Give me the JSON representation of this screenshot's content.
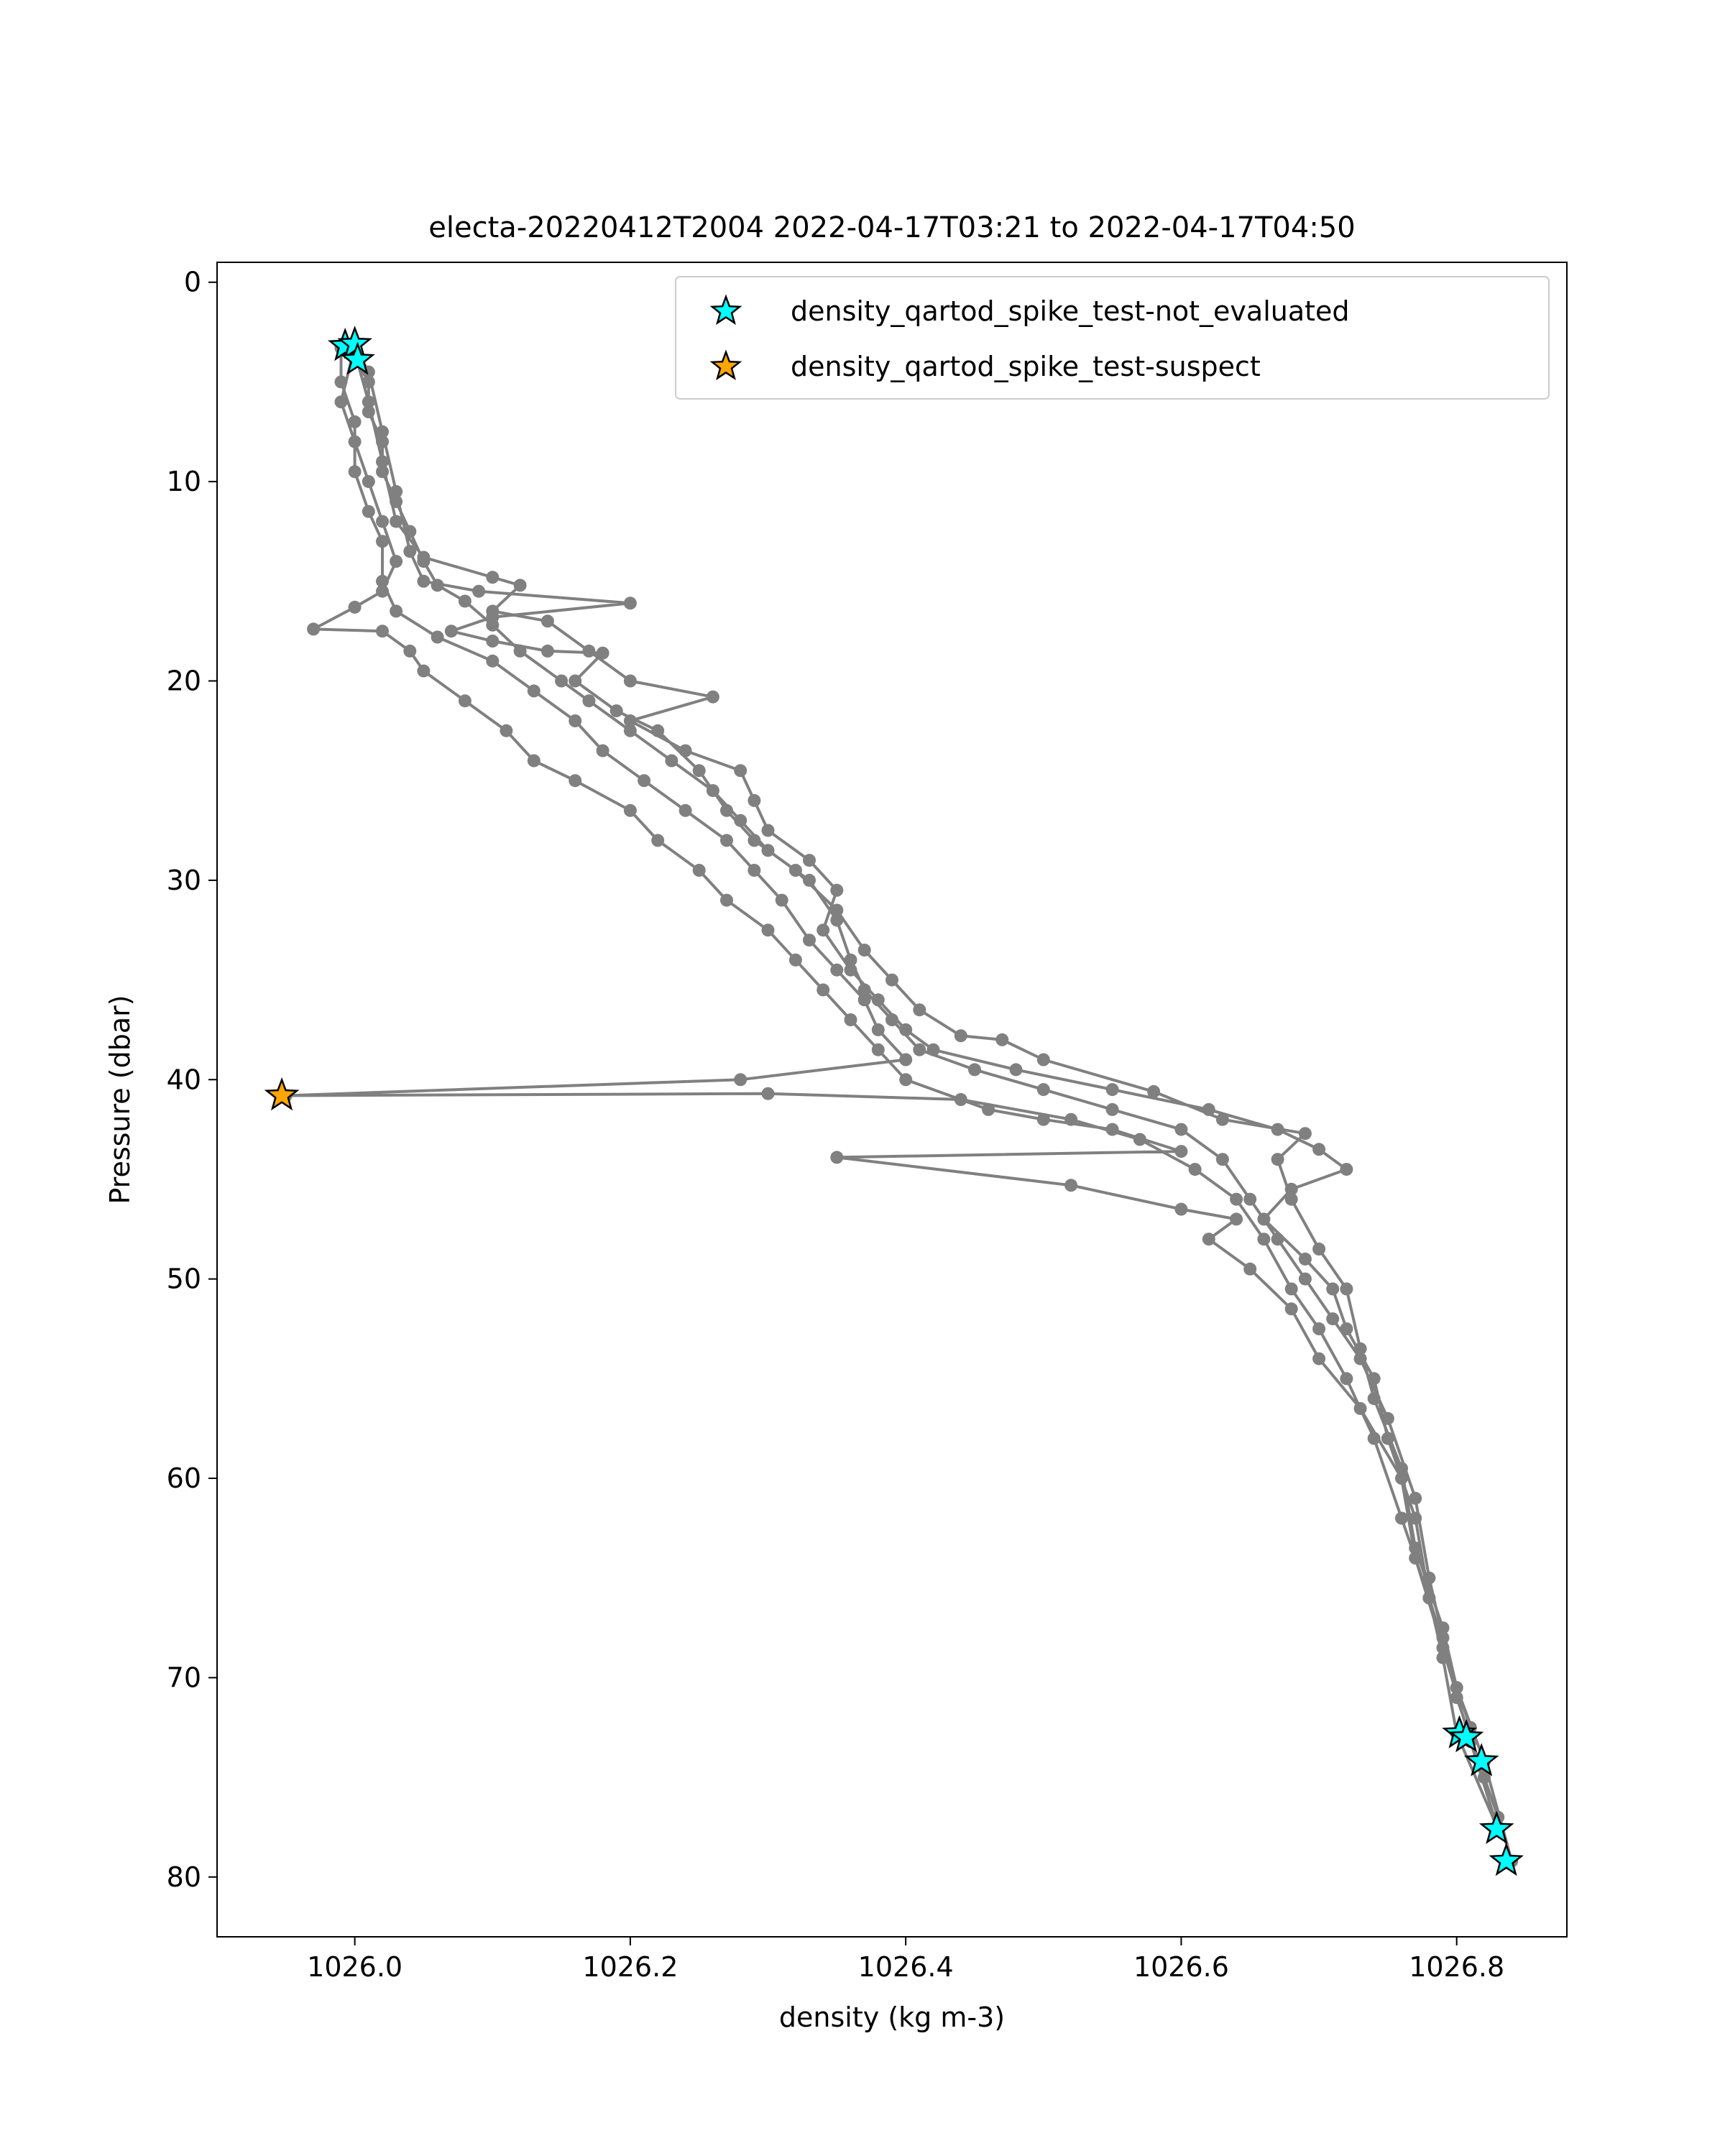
{
  "chart_data": {
    "type": "line",
    "title": "electa-20220412T2004 2022-04-17T03:21 to 2022-04-17T04:50",
    "xlabel": "density (kg m-3)",
    "ylabel": "Pressure (dbar)",
    "xlim": [
      1025.9,
      1026.88
    ],
    "ylim": [
      83,
      -1
    ],
    "y_inverted": true,
    "grid": false,
    "legend_position": "top-right",
    "xticks": [
      "1026.0",
      "1026.2",
      "1026.4",
      "1026.6",
      "1026.8"
    ],
    "yticks": [
      "0",
      "10",
      "20",
      "30",
      "40",
      "50",
      "60",
      "70",
      "80"
    ],
    "xtick_values": [
      1026.0,
      1026.2,
      1026.4,
      1026.6,
      1026.8
    ],
    "ytick_values": [
      0,
      10,
      20,
      30,
      40,
      50,
      60,
      70,
      80
    ],
    "colors": {
      "profile": "#808080",
      "not_evaluated": "#00FFFF",
      "suspect": "#FFA500",
      "star_edge": "#000000"
    },
    "series": [
      {
        "name": "",
        "role": "profile",
        "points": [
          [
            1025.99,
            3.2
          ],
          [
            1026.0,
            3.8
          ],
          [
            1026.01,
            5.0
          ],
          [
            1026.01,
            6.5
          ],
          [
            1026.02,
            8.0
          ],
          [
            1026.02,
            9.5
          ],
          [
            1026.03,
            11.0
          ],
          [
            1026.04,
            12.5
          ],
          [
            1026.05,
            14.0
          ],
          [
            1026.06,
            15.2
          ],
          [
            1026.08,
            16.0
          ],
          [
            1026.1,
            17.2
          ],
          [
            1026.12,
            18.5
          ],
          [
            1026.15,
            20.0
          ],
          [
            1026.17,
            21.0
          ],
          [
            1026.2,
            22.5
          ],
          [
            1026.23,
            24.0
          ],
          [
            1026.26,
            25.5
          ],
          [
            1026.28,
            27.0
          ],
          [
            1026.3,
            28.5
          ],
          [
            1026.33,
            30.0
          ],
          [
            1026.35,
            32.0
          ],
          [
            1026.36,
            34.0
          ],
          [
            1026.37,
            35.5
          ],
          [
            1026.39,
            37.0
          ],
          [
            1026.41,
            38.5
          ],
          [
            1026.45,
            39.5
          ],
          [
            1026.5,
            40.5
          ],
          [
            1026.55,
            41.5
          ],
          [
            1026.6,
            42.5
          ],
          [
            1026.63,
            44.0
          ],
          [
            1026.65,
            46.0
          ],
          [
            1026.67,
            48.0
          ],
          [
            1026.69,
            50.0
          ],
          [
            1026.71,
            52.0
          ],
          [
            1026.73,
            54.0
          ],
          [
            1026.75,
            57.0
          ],
          [
            1026.77,
            61.0
          ],
          [
            1026.78,
            65.0
          ],
          [
            1026.79,
            68.0
          ],
          [
            1026.8,
            71.0
          ],
          [
            1026.81,
            73.0
          ],
          [
            1026.82,
            75.0
          ],
          [
            1026.83,
            77.0
          ],
          [
            1026.84,
            79.2
          ],
          [
            1026.82,
            74.2
          ],
          [
            1026.8,
            70.5
          ],
          [
            1026.78,
            66.0
          ],
          [
            1026.76,
            62.0
          ],
          [
            1026.74,
            58.0
          ],
          [
            1026.72,
            55.0
          ],
          [
            1026.7,
            52.5
          ],
          [
            1026.68,
            50.5
          ],
          [
            1026.66,
            48.0
          ],
          [
            1026.64,
            46.0
          ],
          [
            1026.61,
            44.5
          ],
          [
            1026.57,
            43.0
          ],
          [
            1026.52,
            42.0
          ],
          [
            1026.44,
            41.0
          ],
          [
            1026.3,
            40.7
          ],
          [
            1025.95,
            40.8
          ],
          [
            1026.28,
            40.0
          ],
          [
            1026.4,
            39.0
          ],
          [
            1026.38,
            37.5
          ],
          [
            1026.37,
            36.0
          ],
          [
            1026.35,
            34.5
          ],
          [
            1026.33,
            33.0
          ],
          [
            1026.31,
            31.0
          ],
          [
            1026.29,
            29.5
          ],
          [
            1026.27,
            28.0
          ],
          [
            1026.24,
            26.5
          ],
          [
            1026.21,
            25.0
          ],
          [
            1026.18,
            23.5
          ],
          [
            1026.16,
            22.0
          ],
          [
            1026.13,
            20.5
          ],
          [
            1026.1,
            19.0
          ],
          [
            1026.06,
            17.8
          ],
          [
            1026.03,
            16.5
          ],
          [
            1026.02,
            15.0
          ],
          [
            1026.02,
            13.0
          ],
          [
            1026.01,
            11.5
          ],
          [
            1026.0,
            9.5
          ],
          [
            1026.0,
            7.0
          ],
          [
            1025.99,
            5.0
          ],
          [
            1025.99,
            3.3
          ],
          [
            1026.0,
            3.5
          ],
          [
            1026.01,
            6.0
          ],
          [
            1026.02,
            9.0
          ],
          [
            1026.03,
            12.0
          ],
          [
            1026.05,
            13.8
          ],
          [
            1026.1,
            14.8
          ],
          [
            1026.12,
            15.2
          ],
          [
            1026.1,
            16.5
          ],
          [
            1026.14,
            17.0
          ],
          [
            1026.17,
            18.5
          ],
          [
            1026.2,
            20.0
          ],
          [
            1026.26,
            20.8
          ],
          [
            1026.2,
            22.0
          ],
          [
            1026.24,
            23.5
          ],
          [
            1026.28,
            24.5
          ],
          [
            1026.29,
            26.0
          ],
          [
            1026.3,
            27.5
          ],
          [
            1026.33,
            29.0
          ],
          [
            1026.35,
            30.5
          ],
          [
            1026.34,
            32.5
          ],
          [
            1026.36,
            34.5
          ],
          [
            1026.38,
            36.0
          ],
          [
            1026.4,
            37.5
          ],
          [
            1026.42,
            38.5
          ],
          [
            1026.48,
            39.5
          ],
          [
            1026.55,
            40.5
          ],
          [
            1026.62,
            41.5
          ],
          [
            1026.67,
            42.5
          ],
          [
            1026.7,
            43.5
          ],
          [
            1026.72,
            44.5
          ],
          [
            1026.68,
            45.5
          ],
          [
            1026.66,
            47.0
          ],
          [
            1026.69,
            49.0
          ],
          [
            1026.71,
            50.5
          ],
          [
            1026.72,
            52.5
          ],
          [
            1026.74,
            55.0
          ],
          [
            1026.75,
            58.0
          ],
          [
            1026.77,
            62.0
          ],
          [
            1026.78,
            66.0
          ],
          [
            1026.79,
            69.0
          ],
          [
            1026.8,
            72.8
          ],
          [
            1026.83,
            77.6
          ],
          [
            1026.81,
            73.2
          ],
          [
            1026.79,
            68.5
          ],
          [
            1026.77,
            64.0
          ],
          [
            1026.76,
            60.0
          ],
          [
            1026.73,
            56.5
          ],
          [
            1026.7,
            54.0
          ],
          [
            1026.68,
            51.5
          ],
          [
            1026.65,
            49.5
          ],
          [
            1026.62,
            48.0
          ],
          [
            1026.64,
            47.0
          ],
          [
            1026.6,
            46.5
          ],
          [
            1026.52,
            45.3
          ],
          [
            1026.35,
            43.9
          ],
          [
            1026.6,
            43.6
          ],
          [
            1026.55,
            42.5
          ],
          [
            1026.5,
            42.0
          ],
          [
            1026.46,
            41.5
          ],
          [
            1026.4,
            40.0
          ],
          [
            1026.38,
            38.5
          ],
          [
            1026.36,
            37.0
          ],
          [
            1026.34,
            35.5
          ],
          [
            1026.32,
            34.0
          ],
          [
            1026.3,
            32.5
          ],
          [
            1026.27,
            31.0
          ],
          [
            1026.25,
            29.5
          ],
          [
            1026.22,
            28.0
          ],
          [
            1026.2,
            26.5
          ],
          [
            1026.16,
            25.0
          ],
          [
            1026.13,
            24.0
          ],
          [
            1026.11,
            22.5
          ],
          [
            1026.08,
            21.0
          ],
          [
            1026.05,
            19.5
          ],
          [
            1026.04,
            18.5
          ],
          [
            1026.02,
            17.5
          ],
          [
            1025.97,
            17.4
          ],
          [
            1026.0,
            16.3
          ],
          [
            1026.02,
            15.5
          ],
          [
            1026.03,
            14.0
          ],
          [
            1026.02,
            12.0
          ],
          [
            1026.01,
            10.0
          ],
          [
            1026.0,
            8.0
          ],
          [
            1025.99,
            6.0
          ],
          [
            1026.0,
            3.2
          ],
          [
            1026.01,
            4.5
          ],
          [
            1026.02,
            7.5
          ],
          [
            1026.03,
            10.5
          ],
          [
            1026.04,
            13.5
          ],
          [
            1026.05,
            15.0
          ],
          [
            1026.09,
            15.5
          ],
          [
            1026.2,
            16.1
          ],
          [
            1026.1,
            16.8
          ],
          [
            1026.07,
            17.5
          ],
          [
            1026.1,
            18.0
          ],
          [
            1026.14,
            18.5
          ],
          [
            1026.18,
            18.6
          ],
          [
            1026.16,
            20.0
          ],
          [
            1026.19,
            21.5
          ],
          [
            1026.22,
            22.5
          ],
          [
            1026.25,
            24.5
          ],
          [
            1026.27,
            26.5
          ],
          [
            1026.29,
            28.0
          ],
          [
            1026.32,
            29.5
          ],
          [
            1026.35,
            31.5
          ],
          [
            1026.37,
            33.5
          ],
          [
            1026.39,
            35.0
          ],
          [
            1026.41,
            36.5
          ],
          [
            1026.44,
            37.8
          ],
          [
            1026.47,
            38.0
          ],
          [
            1026.5,
            39.0
          ],
          [
            1026.58,
            40.6
          ],
          [
            1026.63,
            42.0
          ],
          [
            1026.69,
            42.7
          ],
          [
            1026.67,
            44.0
          ],
          [
            1026.68,
            46.0
          ],
          [
            1026.7,
            48.5
          ],
          [
            1026.72,
            50.5
          ],
          [
            1026.73,
            53.5
          ],
          [
            1026.74,
            56.0
          ],
          [
            1026.76,
            59.5
          ],
          [
            1026.77,
            63.5
          ],
          [
            1026.79,
            67.5
          ],
          [
            1026.8,
            70.5
          ],
          [
            1026.81,
            72.5
          ]
        ]
      },
      {
        "name": "density_qartod_spike_test-not_evaluated",
        "role": "not_evaluated",
        "points": [
          [
            1025.993,
            3.2
          ],
          [
            1026.0,
            3.1
          ],
          [
            1026.002,
            3.9
          ],
          [
            1026.802,
            72.8
          ],
          [
            1026.807,
            73.0
          ],
          [
            1026.818,
            74.2
          ],
          [
            1026.829,
            77.6
          ],
          [
            1026.836,
            79.2
          ]
        ]
      },
      {
        "name": "density_qartod_spike_test-suspect",
        "role": "suspect",
        "points": [
          [
            1025.947,
            40.8
          ]
        ]
      }
    ]
  }
}
